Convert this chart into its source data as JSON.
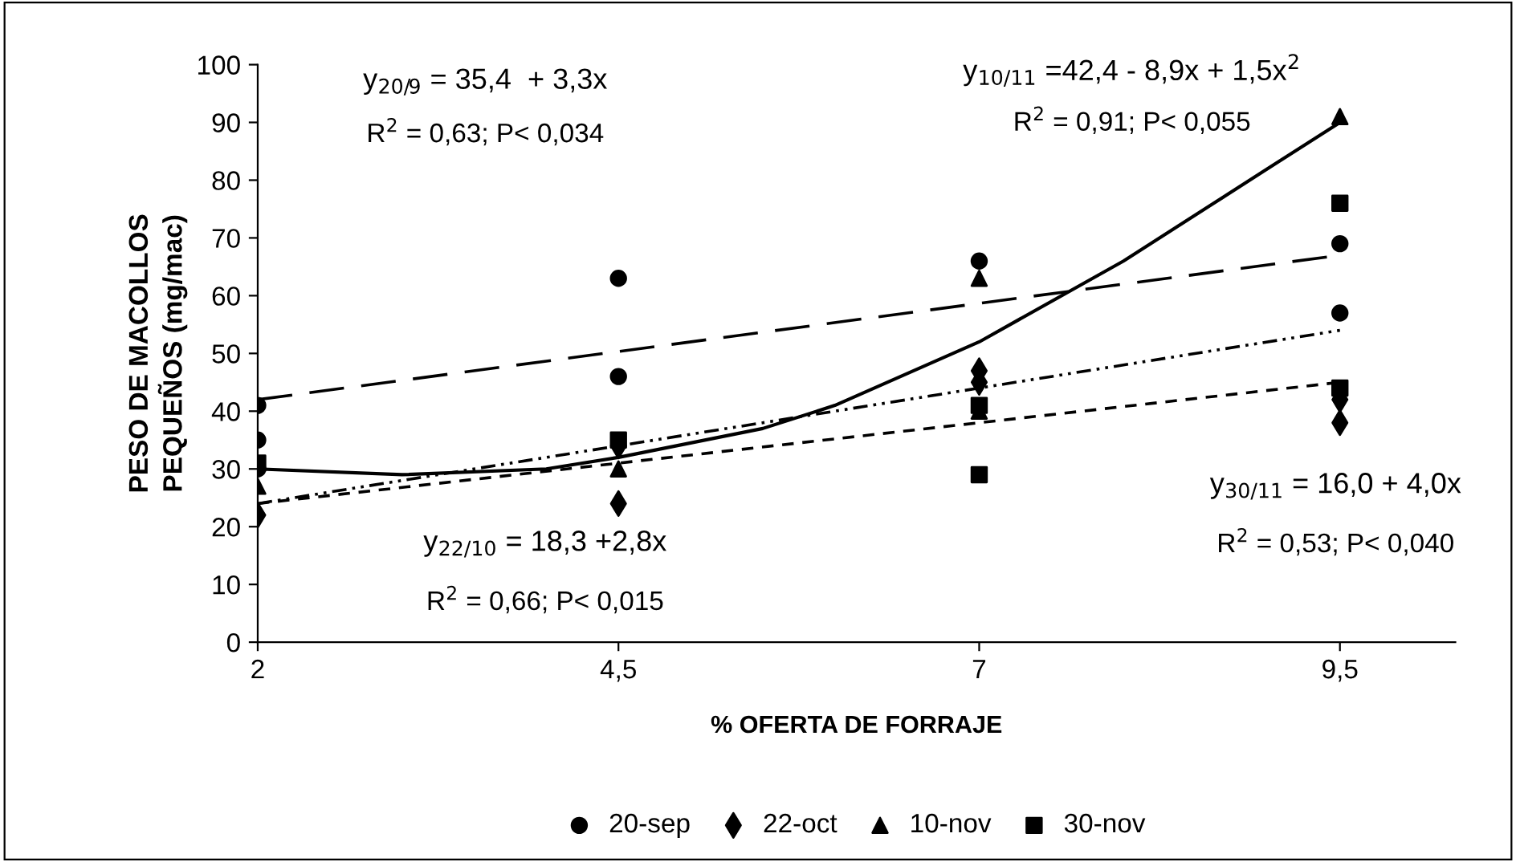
{
  "chart_data": {
    "type": "scatter",
    "xlabel": "% OFERTA DE FORRAJE",
    "ylabel": "PESO DE MACOLLOS\nPEQUEÑOS (mg/mac)",
    "xlim": [
      2,
      10.3
    ],
    "xticks": [
      2,
      {
        "value": 4.5,
        "label": "4,5"
      },
      7,
      {
        "value": 9.5,
        "label": "9,5"
      }
    ],
    "ylim": [
      0,
      100
    ],
    "yticks": [
      0,
      10,
      20,
      30,
      40,
      50,
      60,
      70,
      80,
      90,
      100
    ],
    "grid": false,
    "legend": "bottom",
    "series": [
      {
        "name": "20-sep",
        "color": "#000000",
        "marker": "circle",
        "x": [
          2,
          2,
          2,
          4.5,
          4.5,
          7,
          9.5,
          9.5
        ],
        "values": [
          41,
          35,
          30,
          63,
          46,
          66,
          69,
          57
        ]
      },
      {
        "name": "22-oct",
        "color": "#000000",
        "marker": "diamond",
        "x": [
          2,
          4.5,
          4.5,
          7,
          7,
          9.5,
          9.5
        ],
        "values": [
          22,
          24,
          34,
          47,
          45,
          42,
          38
        ]
      },
      {
        "name": "10-nov",
        "color": "#000000",
        "marker": "triangle",
        "x": [
          2,
          4.5,
          7,
          7,
          9.5
        ],
        "values": [
          27,
          30,
          63,
          40,
          91
        ]
      },
      {
        "name": "30-nov",
        "color": "#000000",
        "marker": "square",
        "x": [
          2,
          4.5,
          7,
          7,
          9.5,
          9.5
        ],
        "values": [
          31,
          35,
          41,
          29,
          76,
          44
        ]
      },
      {
        "type": "line",
        "color": "#000000",
        "line_style": "dashed",
        "marker": "none",
        "x": [
          2,
          9.5
        ],
        "values": [
          42,
          67
        ]
      },
      {
        "type": "line",
        "color": "#000000",
        "line_style": "dashed",
        "marker": "none",
        "x": [
          2,
          9.5
        ],
        "values": [
          24,
          45
        ]
      },
      {
        "type": "line",
        "color": "#000000",
        "line_style": "solid",
        "marker": "none",
        "x": [
          2,
          3,
          4,
          4.5,
          5.5,
          6,
          7,
          8,
          9,
          9.5
        ],
        "values": [
          30,
          29,
          30,
          32,
          37,
          41,
          52,
          66,
          82,
          90
        ]
      },
      {
        "type": "line",
        "color": "#000000",
        "line_style": "dotted",
        "marker": "none",
        "x": [
          2,
          9.5
        ],
        "values": [
          24,
          54
        ]
      }
    ],
    "annotations": [
      "y$_{20/9}$ = 35,4  + 3,3x",
      "R$^{2}$ = 0,63; P< 0,034",
      "y$_{10/11}$ =42,4 - 8,9x + 1,5x$^{2}$",
      "R$^{2}$ = 0,91; P< 0,055",
      "y$_{22/10}$ = 18,3 +2,8x",
      "R$^{2}$ = 0,66; P< 0,015",
      "y$_{30/11}$ = 16,0 + 4,0x",
      "R$^{2}$ = 0,53; P< 0,040"
    ]
  }
}
